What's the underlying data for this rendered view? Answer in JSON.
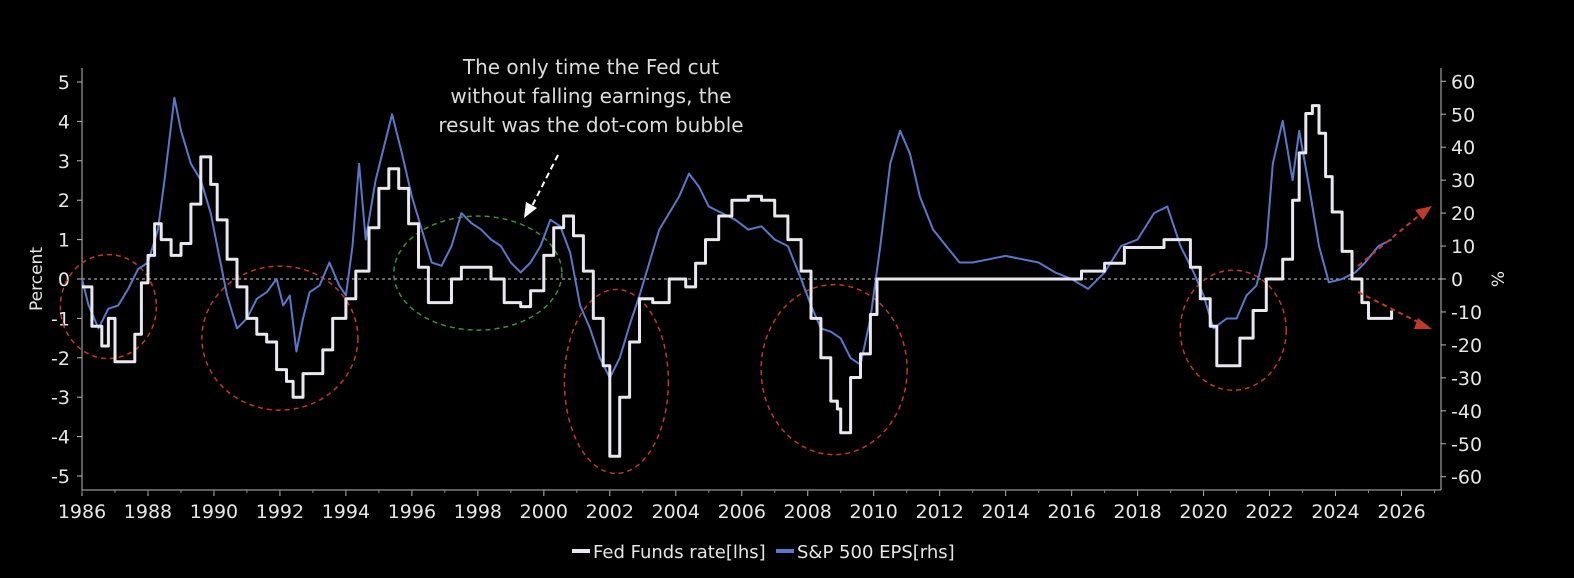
{
  "chart_data": {
    "type": "line",
    "ylabel_left": "Percent",
    "ylabel_right": "%",
    "ylim_left": [
      -5.3,
      5.5
    ],
    "ylim_right": [
      -63,
      65
    ],
    "yticks_left": [
      5,
      4,
      3,
      2,
      1,
      0,
      -1,
      -2,
      -3,
      -4,
      -5
    ],
    "yticks_right": [
      60,
      50,
      40,
      30,
      20,
      10,
      0,
      -10,
      -20,
      -30,
      -40,
      -50,
      -60
    ],
    "xlim": [
      1986,
      2027.5
    ],
    "xticks": [
      1986,
      1988,
      1990,
      1992,
      1994,
      1996,
      1998,
      2000,
      2002,
      2004,
      2006,
      2008,
      2010,
      2012,
      2014,
      2016,
      2018,
      2020,
      2022,
      2024,
      2026
    ],
    "zero_line": true,
    "annotation": [
      "The only time the Fed cut",
      "without falling earnings, the",
      "result was the dot-com bubble"
    ],
    "series": [
      {
        "name": "Fed Funds rate[lhs]",
        "axis": "left",
        "color": "#e8e8ee",
        "points": [
          [
            1986.0,
            -0.2
          ],
          [
            1986.3,
            -1.2
          ],
          [
            1986.6,
            -1.7
          ],
          [
            1986.8,
            -1.0
          ],
          [
            1987.0,
            -2.1
          ],
          [
            1987.4,
            -2.1
          ],
          [
            1987.6,
            -1.4
          ],
          [
            1987.8,
            -0.1
          ],
          [
            1988.0,
            0.6
          ],
          [
            1988.2,
            1.4
          ],
          [
            1988.4,
            1.0
          ],
          [
            1988.7,
            0.6
          ],
          [
            1989.0,
            0.9
          ],
          [
            1989.3,
            1.9
          ],
          [
            1989.6,
            3.1
          ],
          [
            1989.9,
            2.4
          ],
          [
            1990.1,
            1.5
          ],
          [
            1990.4,
            0.5
          ],
          [
            1990.7,
            -0.2
          ],
          [
            1991.0,
            -1.0
          ],
          [
            1991.3,
            -1.4
          ],
          [
            1991.6,
            -1.6
          ],
          [
            1991.9,
            -2.3
          ],
          [
            1992.2,
            -2.6
          ],
          [
            1992.4,
            -3.0
          ],
          [
            1992.7,
            -2.4
          ],
          [
            1993.0,
            -2.4
          ],
          [
            1993.3,
            -1.8
          ],
          [
            1993.6,
            -1.0
          ],
          [
            1994.0,
            -0.5
          ],
          [
            1994.3,
            0.2
          ],
          [
            1994.7,
            1.3
          ],
          [
            1995.0,
            2.3
          ],
          [
            1995.3,
            2.8
          ],
          [
            1995.6,
            2.3
          ],
          [
            1995.9,
            1.4
          ],
          [
            1996.2,
            0.3
          ],
          [
            1996.5,
            -0.6
          ],
          [
            1996.9,
            -0.6
          ],
          [
            1997.2,
            0.0
          ],
          [
            1997.5,
            0.3
          ],
          [
            1998.0,
            0.3
          ],
          [
            1998.4,
            0.0
          ],
          [
            1998.8,
            -0.6
          ],
          [
            1999.3,
            -0.7
          ],
          [
            1999.6,
            -0.3
          ],
          [
            2000.0,
            0.6
          ],
          [
            2000.3,
            1.3
          ],
          [
            2000.6,
            1.6
          ],
          [
            2000.9,
            1.1
          ],
          [
            2001.2,
            0.2
          ],
          [
            2001.5,
            -1.0
          ],
          [
            2001.8,
            -2.2
          ],
          [
            2002.0,
            -4.5
          ],
          [
            2002.3,
            -3.0
          ],
          [
            2002.6,
            -1.6
          ],
          [
            2002.9,
            -0.5
          ],
          [
            2003.3,
            -0.6
          ],
          [
            2003.8,
            0.0
          ],
          [
            2004.3,
            -0.2
          ],
          [
            2004.6,
            0.4
          ],
          [
            2004.9,
            1.0
          ],
          [
            2005.3,
            1.6
          ],
          [
            2005.7,
            2.0
          ],
          [
            2006.2,
            2.1
          ],
          [
            2006.6,
            2.0
          ],
          [
            2007.0,
            1.6
          ],
          [
            2007.4,
            1.0
          ],
          [
            2007.8,
            0.2
          ],
          [
            2008.1,
            -1.0
          ],
          [
            2008.4,
            -2.0
          ],
          [
            2008.7,
            -3.1
          ],
          [
            2008.9,
            -3.3
          ],
          [
            2009.0,
            -3.9
          ],
          [
            2009.3,
            -2.5
          ],
          [
            2009.6,
            -1.9
          ],
          [
            2009.9,
            -0.9
          ],
          [
            2010.1,
            0.0
          ],
          [
            2015.9,
            0.0
          ],
          [
            2016.3,
            0.2
          ],
          [
            2017.0,
            0.4
          ],
          [
            2017.6,
            0.8
          ],
          [
            2018.3,
            0.8
          ],
          [
            2018.8,
            1.0
          ],
          [
            2019.2,
            1.0
          ],
          [
            2019.6,
            0.3
          ],
          [
            2019.9,
            -0.5
          ],
          [
            2020.2,
            -1.2
          ],
          [
            2020.4,
            -2.2
          ],
          [
            2020.8,
            -2.2
          ],
          [
            2021.1,
            -1.5
          ],
          [
            2021.5,
            -0.8
          ],
          [
            2021.9,
            0.0
          ],
          [
            2022.2,
            0.0
          ],
          [
            2022.4,
            0.5
          ],
          [
            2022.7,
            2.0
          ],
          [
            2022.9,
            3.2
          ],
          [
            2023.1,
            4.2
          ],
          [
            2023.3,
            4.4
          ],
          [
            2023.5,
            3.7
          ],
          [
            2023.7,
            2.6
          ],
          [
            2023.9,
            1.7
          ],
          [
            2024.2,
            0.7
          ],
          [
            2024.5,
            0.0
          ],
          [
            2024.8,
            -0.6
          ],
          [
            2025.0,
            -1.0
          ],
          [
            2025.6,
            -1.0
          ],
          [
            2025.7,
            -0.8
          ]
        ]
      },
      {
        "name": "S&P 500 EPS[rhs]",
        "axis": "right",
        "color": "#5b78c8",
        "points": [
          [
            1986.0,
            0.0
          ],
          [
            1986.2,
            -8.0
          ],
          [
            1986.5,
            -15.0
          ],
          [
            1986.8,
            -9.0
          ],
          [
            1987.1,
            -8.0
          ],
          [
            1987.4,
            -3.0
          ],
          [
            1987.7,
            3.0
          ],
          [
            1988.0,
            5.0
          ],
          [
            1988.3,
            15.0
          ],
          [
            1988.5,
            30.0
          ],
          [
            1988.8,
            55.0
          ],
          [
            1989.0,
            45.0
          ],
          [
            1989.3,
            35.0
          ],
          [
            1989.6,
            30.0
          ],
          [
            1989.9,
            20.0
          ],
          [
            1990.1,
            10.0
          ],
          [
            1990.4,
            -5.0
          ],
          [
            1990.7,
            -15.0
          ],
          [
            1991.0,
            -12.0
          ],
          [
            1991.3,
            -6.0
          ],
          [
            1991.6,
            -4.0
          ],
          [
            1991.9,
            0.0
          ],
          [
            1992.1,
            -8.0
          ],
          [
            1992.3,
            -5.0
          ],
          [
            1992.5,
            -22.0
          ],
          [
            1992.7,
            -12.0
          ],
          [
            1992.9,
            -4.0
          ],
          [
            1993.2,
            -2.0
          ],
          [
            1993.5,
            5.0
          ],
          [
            1993.8,
            -2.0
          ],
          [
            1994.0,
            -5.0
          ],
          [
            1994.2,
            10.0
          ],
          [
            1994.4,
            35.0
          ],
          [
            1994.6,
            12.0
          ],
          [
            1994.9,
            30.0
          ],
          [
            1995.1,
            38.0
          ],
          [
            1995.4,
            50.0
          ],
          [
            1995.7,
            38.0
          ],
          [
            1996.0,
            25.0
          ],
          [
            1996.3,
            15.0
          ],
          [
            1996.6,
            5.0
          ],
          [
            1996.9,
            4.0
          ],
          [
            1997.2,
            10.0
          ],
          [
            1997.5,
            20.0
          ],
          [
            1997.8,
            17.0
          ],
          [
            1998.1,
            15.0
          ],
          [
            1998.4,
            12.0
          ],
          [
            1998.7,
            10.0
          ],
          [
            1999.0,
            5.0
          ],
          [
            1999.3,
            2.0
          ],
          [
            1999.6,
            5.0
          ],
          [
            1999.9,
            10.0
          ],
          [
            2000.2,
            18.0
          ],
          [
            2000.5,
            16.0
          ],
          [
            2000.8,
            8.0
          ],
          [
            2001.1,
            -8.0
          ],
          [
            2001.4,
            -15.0
          ],
          [
            2001.7,
            -24.0
          ],
          [
            2002.0,
            -30.0
          ],
          [
            2002.3,
            -24.0
          ],
          [
            2002.6,
            -14.0
          ],
          [
            2002.9,
            -5.0
          ],
          [
            2003.2,
            5.0
          ],
          [
            2003.5,
            15.0
          ],
          [
            2003.8,
            20.0
          ],
          [
            2004.1,
            25.0
          ],
          [
            2004.4,
            32.0
          ],
          [
            2004.7,
            28.0
          ],
          [
            2005.0,
            22.0
          ],
          [
            2005.4,
            20.0
          ],
          [
            2005.8,
            18.0
          ],
          [
            2006.2,
            15.0
          ],
          [
            2006.6,
            16.0
          ],
          [
            2007.0,
            12.0
          ],
          [
            2007.4,
            10.0
          ],
          [
            2007.8,
            0.0
          ],
          [
            2008.1,
            -8.0
          ],
          [
            2008.4,
            -15.0
          ],
          [
            2008.7,
            -16.0
          ],
          [
            2009.0,
            -18.0
          ],
          [
            2009.3,
            -24.0
          ],
          [
            2009.6,
            -26.0
          ],
          [
            2009.9,
            -12.0
          ],
          [
            2010.2,
            10.0
          ],
          [
            2010.5,
            35.0
          ],
          [
            2010.8,
            45.0
          ],
          [
            2011.1,
            38.0
          ],
          [
            2011.4,
            25.0
          ],
          [
            2011.8,
            15.0
          ],
          [
            2012.2,
            10.0
          ],
          [
            2012.6,
            5.0
          ],
          [
            2013.0,
            5.0
          ],
          [
            2013.5,
            6.0
          ],
          [
            2014.0,
            7.0
          ],
          [
            2014.5,
            6.0
          ],
          [
            2015.0,
            5.0
          ],
          [
            2015.5,
            2.0
          ],
          [
            2016.0,
            0.0
          ],
          [
            2016.5,
            -3.0
          ],
          [
            2017.0,
            2.0
          ],
          [
            2017.5,
            10.0
          ],
          [
            2018.0,
            12.0
          ],
          [
            2018.5,
            20.0
          ],
          [
            2018.9,
            22.0
          ],
          [
            2019.3,
            10.0
          ],
          [
            2019.7,
            2.0
          ],
          [
            2020.0,
            -5.0
          ],
          [
            2020.3,
            -15.0
          ],
          [
            2020.7,
            -12.0
          ],
          [
            2021.0,
            -12.0
          ],
          [
            2021.3,
            -5.0
          ],
          [
            2021.6,
            -2.0
          ],
          [
            2021.9,
            10.0
          ],
          [
            2022.1,
            35.0
          ],
          [
            2022.4,
            48.0
          ],
          [
            2022.7,
            30.0
          ],
          [
            2022.9,
            45.0
          ],
          [
            2023.2,
            28.0
          ],
          [
            2023.5,
            10.0
          ],
          [
            2023.8,
            -1.0
          ],
          [
            2024.2,
            0.0
          ],
          [
            2024.6,
            2.0
          ],
          [
            2024.9,
            5.0
          ],
          [
            2025.3,
            10.0
          ],
          [
            2025.7,
            12.0
          ]
        ]
      }
    ]
  },
  "legend": {
    "items": [
      {
        "label": "Fed Funds rate[lhs]",
        "color": "#e8e8ee"
      },
      {
        "label": "S&P 500 EPS[rhs]",
        "color": "#5b78c8"
      }
    ]
  },
  "highlights": [
    {
      "center_year": 1986.8,
      "center_value": -0.7,
      "color": "#c0392b"
    },
    {
      "center_year": 1992.0,
      "center_value": -1.5,
      "color": "#c0392b"
    },
    {
      "center_year": 1998.0,
      "center_value": 0.15,
      "color": "#3f8f3f"
    },
    {
      "center_year": 2002.2,
      "center_value": -2.6,
      "color": "#c0392b"
    },
    {
      "center_year": 2008.8,
      "center_value": -2.3,
      "color": "#c0392b"
    },
    {
      "center_year": 2020.9,
      "center_value": -1.3,
      "color": "#c0392b"
    }
  ]
}
